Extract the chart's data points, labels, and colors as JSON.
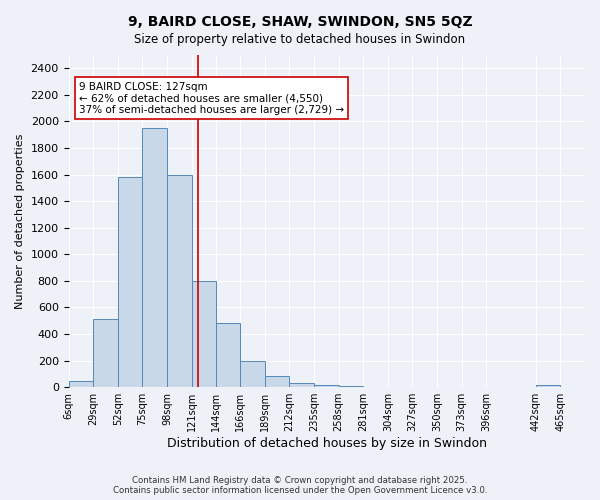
{
  "title1": "9, BAIRD CLOSE, SHAW, SWINDON, SN5 5QZ",
  "title2": "Size of property relative to detached houses in Swindon",
  "xlabel": "Distribution of detached houses by size in Swindon",
  "ylabel": "Number of detached properties",
  "bar_color": "#c8d8e8",
  "bar_edge_color": "#5588bb",
  "property_line_x": 127,
  "property_line_color": "#cc0000",
  "annotation_text": "9 BAIRD CLOSE: 127sqm\n← 62% of detached houses are smaller (4,550)\n37% of semi-detached houses are larger (2,729) →",
  "annotation_box_color": "#ffffff",
  "annotation_box_edge": "#cc0000",
  "footer": "Contains HM Land Registry data © Crown copyright and database right 2025.\nContains public sector information licensed under the Open Government Licence v3.0.",
  "categories": [
    "6sqm",
    "29sqm",
    "52sqm",
    "75sqm",
    "98sqm",
    "121sqm",
    "144sqm",
    "166sqm",
    "189sqm",
    "212sqm",
    "235sqm",
    "258sqm",
    "281sqm",
    "304sqm",
    "327sqm",
    "350sqm",
    "373sqm",
    "396sqm",
    "442sqm",
    "465sqm"
  ],
  "bin_edges": [
    6,
    29,
    52,
    75,
    98,
    121,
    144,
    166,
    189,
    212,
    235,
    258,
    281,
    304,
    327,
    350,
    373,
    396,
    442,
    465
  ],
  "values": [
    50,
    510,
    1580,
    1950,
    1600,
    800,
    480,
    195,
    85,
    35,
    20,
    10,
    5,
    2,
    1,
    1,
    0,
    0,
    20,
    0
  ],
  "ylim": [
    0,
    2500
  ],
  "yticks": [
    0,
    200,
    400,
    600,
    800,
    1000,
    1200,
    1400,
    1600,
    1800,
    2000,
    2200,
    2400
  ],
  "bg_color": "#eef2f8",
  "plot_bg_color": "#eef2f8"
}
